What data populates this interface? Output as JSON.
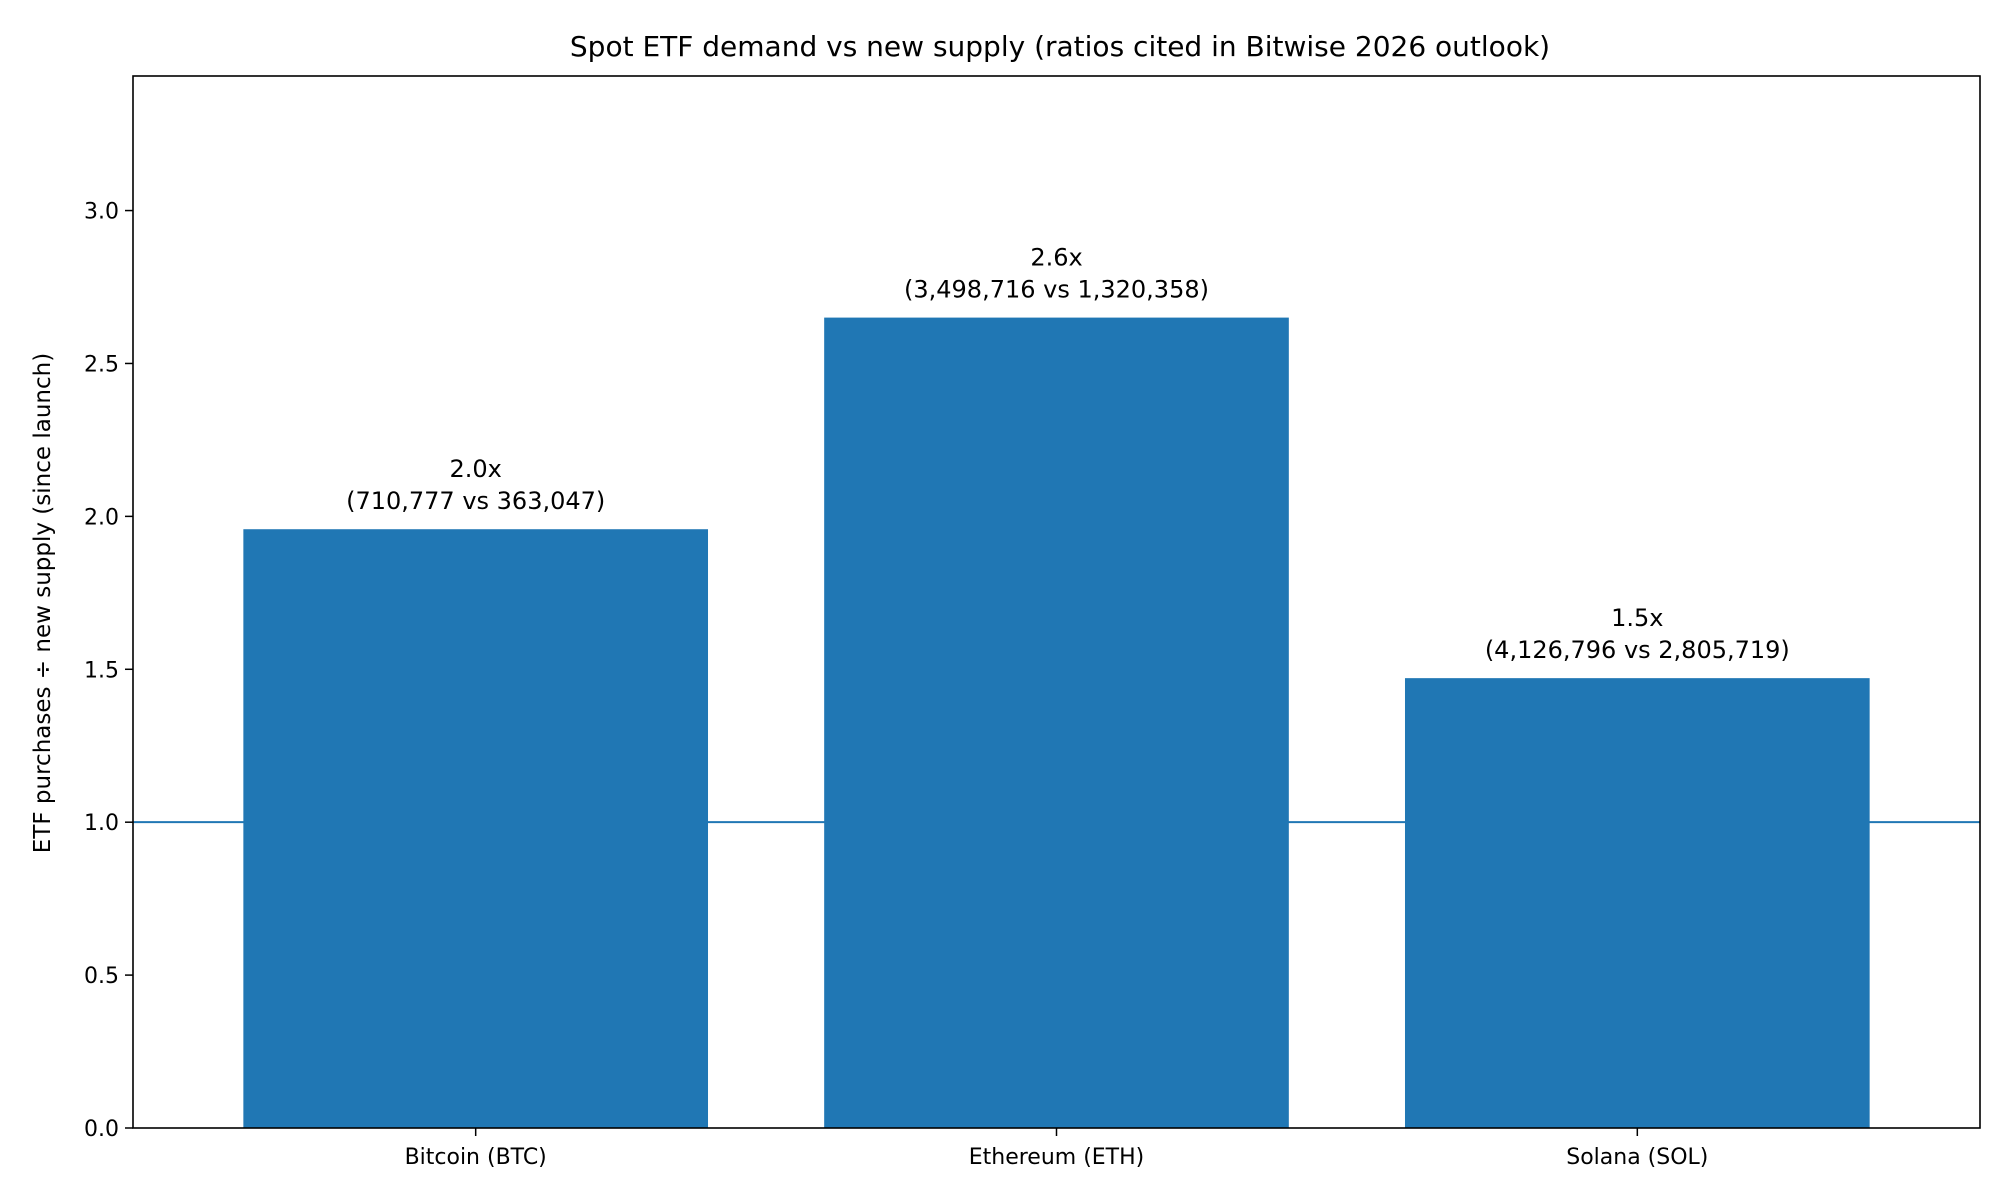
{
  "chart_data": {
    "type": "bar",
    "title": "Spot ETF demand vs new supply (ratios cited in Bitwise 2026 outlook)",
    "xlabel": "",
    "ylabel": "ETF purchases ÷ new supply (since launch)",
    "categories": [
      "Bitcoin (BTC)",
      "Ethereum (ETH)",
      "Solana (SOL)"
    ],
    "values": [
      1.958,
      2.65,
      1.471
    ],
    "bar_labels": [
      [
        "2.0x",
        "(710,777 vs 363,047)"
      ],
      [
        "2.6x",
        "(3,498,716 vs 1,320,358)"
      ],
      [
        "1.5x",
        "(4,126,796 vs 2,805,719)"
      ]
    ],
    "ylim": [
      0,
      3.44
    ],
    "yticks": [
      0.0,
      0.5,
      1.0,
      1.5,
      2.0,
      2.5,
      3.0
    ],
    "ytick_labels": [
      "0.0",
      "0.5",
      "1.0",
      "1.5",
      "2.0",
      "2.5",
      "3.0"
    ],
    "reference_line": 1.0,
    "grid": false,
    "bar_color": "#2077b4",
    "line_color": "#2077b4"
  }
}
